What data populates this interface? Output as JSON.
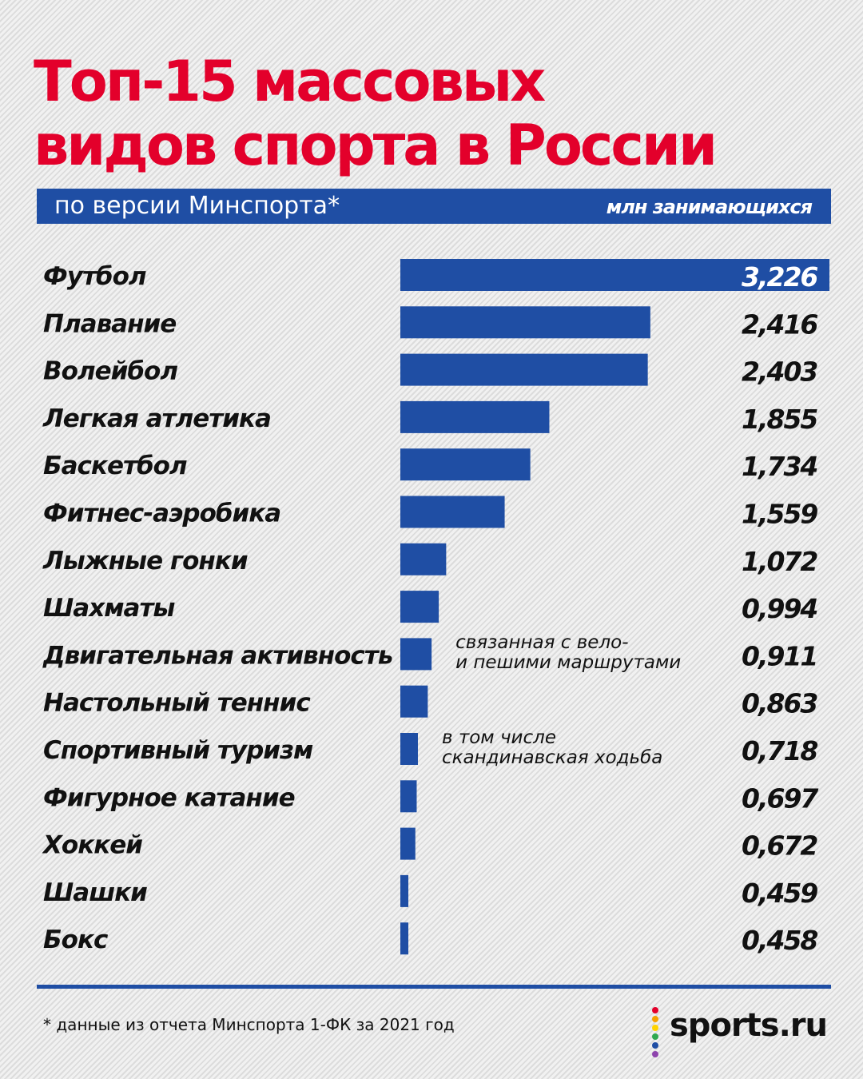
{
  "header": {
    "title_line1": "Топ-15 массовых",
    "title_line2": "видов спорта в России",
    "subtitle": "по версии Минспорта*",
    "units": "млн занимающихся"
  },
  "colors": {
    "accent": "#e3002b",
    "bar": "#1f4ea4"
  },
  "chart_data": {
    "type": "bar",
    "orientation": "horizontal",
    "categories": [
      "Футбол",
      "Плавание",
      "Волейбол",
      "Легкая атлетика",
      "Баскетбол",
      "Фитнес-аэробика",
      "Лыжные гонки",
      "Шахматы",
      "Двигательная активность",
      "Настольный теннис",
      "Спортивный туризм",
      "Фигурное катание",
      "Хоккей",
      "Шашки",
      "Бокс"
    ],
    "values": [
      3.226,
      2.416,
      2.403,
      1.855,
      1.734,
      1.559,
      1.072,
      0.994,
      0.911,
      0.863,
      0.718,
      0.697,
      0.672,
      0.459,
      0.458
    ],
    "value_labels": [
      "3,226",
      "2,416",
      "2,403",
      "1,855",
      "1,734",
      "1,559",
      "1,072",
      "0,994",
      "0,911",
      "0,863",
      "0,718",
      "0,697",
      "0,672",
      "0,459",
      "0,458"
    ],
    "title": "Топ-15 массовых видов спорта в России",
    "units": "млн занимающихся",
    "annotations": [
      {
        "category": "Двигательная активность",
        "line1": "связанная с вело-",
        "line2": "и пешими маршрутами"
      },
      {
        "category": "Спортивный туризм",
        "line1": "в том числе",
        "line2": "скандинавская ходьба"
      }
    ]
  },
  "footer": {
    "footnote": "* данные из отчета Минспорта 1-ФК за 2021 год",
    "brand": "sports.ru",
    "logo_dot_colors": [
      "#e3002b",
      "#f5a100",
      "#ffd400",
      "#2fa84f",
      "#1f4ea4",
      "#8e44ad"
    ]
  }
}
